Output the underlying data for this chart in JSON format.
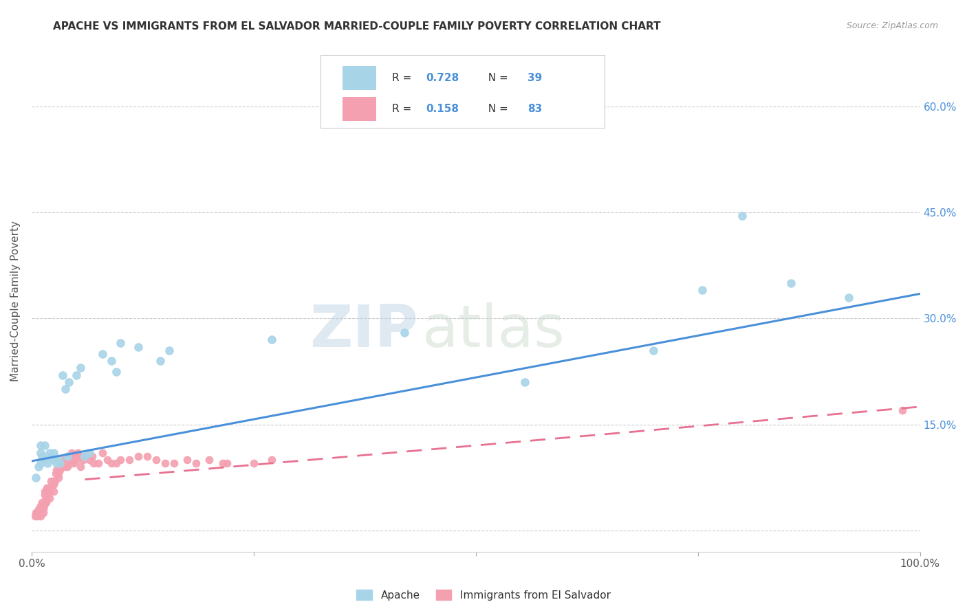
{
  "title": "APACHE VS IMMIGRANTS FROM EL SALVADOR MARRIED-COUPLE FAMILY POVERTY CORRELATION CHART",
  "source": "Source: ZipAtlas.com",
  "ylabel": "Married-Couple Family Poverty",
  "xlim": [
    0.0,
    1.0
  ],
  "ylim": [
    -0.03,
    0.68
  ],
  "ytick_positions": [
    0.0,
    0.15,
    0.3,
    0.45,
    0.6
  ],
  "yticklabels": [
    "",
    "15.0%",
    "30.0%",
    "45.0%",
    "60.0%"
  ],
  "watermark_zip": "ZIP",
  "watermark_atlas": "atlas",
  "legend1_r": "0.728",
  "legend1_n": "39",
  "legend2_r": "0.158",
  "legend2_n": "83",
  "blue_scatter_color": "#a8d4e8",
  "pink_scatter_color": "#f4a0b0",
  "blue_line_color": "#4a90d9",
  "pink_line_color": "#e87090",
  "label1": "Apache",
  "label2": "Immigrants from El Salvador",
  "apache_x": [
    0.005,
    0.008,
    0.01,
    0.01,
    0.01,
    0.012,
    0.015,
    0.015,
    0.018,
    0.02,
    0.022,
    0.025,
    0.025,
    0.028,
    0.03,
    0.032,
    0.035,
    0.038,
    0.04,
    0.042,
    0.05,
    0.055,
    0.06,
    0.065,
    0.08,
    0.09,
    0.095,
    0.1,
    0.12,
    0.145,
    0.155,
    0.27,
    0.42,
    0.555,
    0.7,
    0.755,
    0.8,
    0.855,
    0.92
  ],
  "apache_y": [
    0.075,
    0.09,
    0.11,
    0.12,
    0.095,
    0.105,
    0.12,
    0.1,
    0.095,
    0.11,
    0.105,
    0.1,
    0.11,
    0.095,
    0.1,
    0.095,
    0.22,
    0.2,
    0.105,
    0.21,
    0.22,
    0.23,
    0.105,
    0.11,
    0.25,
    0.24,
    0.225,
    0.265,
    0.26,
    0.24,
    0.255,
    0.27,
    0.28,
    0.21,
    0.255,
    0.34,
    0.445,
    0.35,
    0.33
  ],
  "salvador_x": [
    0.004,
    0.005,
    0.006,
    0.007,
    0.008,
    0.008,
    0.009,
    0.01,
    0.01,
    0.01,
    0.01,
    0.012,
    0.012,
    0.013,
    0.013,
    0.014,
    0.015,
    0.015,
    0.015,
    0.016,
    0.016,
    0.017,
    0.018,
    0.018,
    0.019,
    0.02,
    0.02,
    0.021,
    0.022,
    0.022,
    0.023,
    0.025,
    0.025,
    0.025,
    0.026,
    0.027,
    0.028,
    0.03,
    0.03,
    0.032,
    0.033,
    0.035,
    0.035,
    0.036,
    0.038,
    0.04,
    0.04,
    0.042,
    0.044,
    0.045,
    0.046,
    0.047,
    0.048,
    0.05,
    0.05,
    0.052,
    0.055,
    0.058,
    0.06,
    0.062,
    0.065,
    0.068,
    0.07,
    0.075,
    0.08,
    0.085,
    0.09,
    0.095,
    0.1,
    0.11,
    0.12,
    0.13,
    0.14,
    0.15,
    0.16,
    0.175,
    0.185,
    0.2,
    0.215,
    0.22,
    0.25,
    0.27,
    0.98
  ],
  "salvador_y": [
    0.02,
    0.025,
    0.025,
    0.02,
    0.025,
    0.03,
    0.03,
    0.03,
    0.035,
    0.025,
    0.02,
    0.03,
    0.04,
    0.03,
    0.025,
    0.035,
    0.04,
    0.05,
    0.055,
    0.045,
    0.04,
    0.06,
    0.06,
    0.05,
    0.055,
    0.045,
    0.055,
    0.06,
    0.06,
    0.07,
    0.065,
    0.055,
    0.065,
    0.07,
    0.07,
    0.08,
    0.085,
    0.075,
    0.08,
    0.085,
    0.095,
    0.09,
    0.095,
    0.1,
    0.09,
    0.09,
    0.095,
    0.105,
    0.095,
    0.11,
    0.1,
    0.095,
    0.105,
    0.105,
    0.1,
    0.11,
    0.09,
    0.1,
    0.105,
    0.105,
    0.1,
    0.105,
    0.095,
    0.095,
    0.11,
    0.1,
    0.095,
    0.095,
    0.1,
    0.1,
    0.105,
    0.105,
    0.1,
    0.095,
    0.095,
    0.1,
    0.095,
    0.1,
    0.095,
    0.095,
    0.095,
    0.1,
    0.17
  ],
  "apache_line_x": [
    0.0,
    1.0
  ],
  "apache_line_y": [
    0.098,
    0.335
  ],
  "salvador_line_x_start": 0.06,
  "salvador_line_x_end": 1.0,
  "salvador_line_y_start": 0.072,
  "salvador_line_y_end": 0.175
}
